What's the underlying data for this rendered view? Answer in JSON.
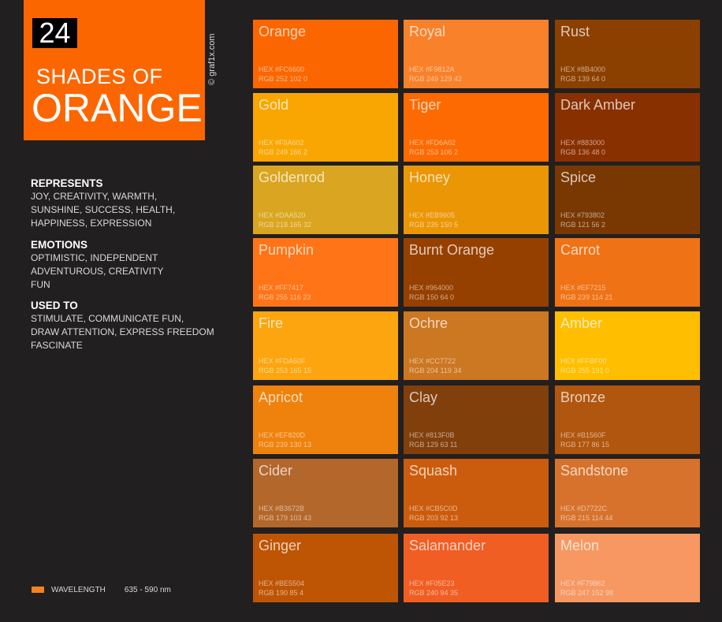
{
  "header": {
    "number": "24",
    "line1": "SHADES OF",
    "line2": "ORANGE",
    "credit": "© graf1x.com",
    "accent": "#fc6600"
  },
  "represents": {
    "heading": "REPRESENTS",
    "lines": [
      "JOY, CREATIVITY, WARMTH,",
      "SUNSHINE, SUCCESS, HEALTH,",
      "HAPPINESS, EXPRESSION"
    ]
  },
  "emotions": {
    "heading": "EMOTIONS",
    "lines": [
      "OPTIMISTIC, INDEPENDENT",
      "ADVENTUROUS, CREATIVITY",
      "FUN"
    ]
  },
  "used_to": {
    "heading": "USED TO",
    "lines": [
      "STIMULATE, COMMUNICATE FUN,",
      "DRAW ATTENTION, EXPRESS FREEDOM",
      "FASCINATE"
    ]
  },
  "wavelength": {
    "label": "WAVELENGTH",
    "range": "635 - 590 nm",
    "color": "#f58220"
  },
  "swatches": [
    {
      "name": "Orange",
      "hex": "HEX #FC6600",
      "rgb": "RGB 252 102 0",
      "color": "#fc6600"
    },
    {
      "name": "Royal",
      "hex": "HEX #F9812A",
      "rgb": "RGB 249 129 42",
      "color": "#f9812a"
    },
    {
      "name": "Rust",
      "hex": "HEX #8B4000",
      "rgb": "RGB 139 64 0",
      "color": "#8b4000"
    },
    {
      "name": "Gold",
      "hex": "HEX #F9A602",
      "rgb": "RGB 249 166 2",
      "color": "#f9a602"
    },
    {
      "name": "Tiger",
      "hex": "HEX #FD6A02",
      "rgb": "RGB 253 106 2",
      "color": "#fd6a02"
    },
    {
      "name": "Dark Amber",
      "hex": "HEX #883000",
      "rgb": "RGB 136 48 0",
      "color": "#883000"
    },
    {
      "name": "Goldenrod",
      "hex": "HEX #DAA520",
      "rgb": "RGB 218 165 32",
      "color": "#daa520"
    },
    {
      "name": "Honey",
      "hex": "HEX  #EB9605",
      "rgb": "RGB 235 150 5",
      "color": "#eb9605"
    },
    {
      "name": "Spice",
      "hex": "HEX #793802",
      "rgb": "RGB 121 56 2",
      "color": "#793802"
    },
    {
      "name": "Pumpkin",
      "hex": "HEX #FF7417",
      "rgb": "RGB 255 116 23",
      "color": "#ff7417"
    },
    {
      "name": "Burnt Orange",
      "hex": "HEX #964000",
      "rgb": "RGB 150 64 0",
      "color": "#964000"
    },
    {
      "name": "Carrot",
      "hex": "HEX #EF7215",
      "rgb": "RGB 239 114 21",
      "color": "#ef7215"
    },
    {
      "name": "Fire",
      "hex": "HEX #FDA50F",
      "rgb": "RGB 253 165 15",
      "color": "#fda50f"
    },
    {
      "name": "Ochre",
      "hex": "HEX #CC7722",
      "rgb": "RGB 204 119 34",
      "color": "#cc7722"
    },
    {
      "name": "Amber",
      "hex": "HEX #FFBF00",
      "rgb": "RGB 255 191 0",
      "color": "#ffbf00"
    },
    {
      "name": "Apricot",
      "hex": "HEX #EF820D",
      "rgb": "RGB 239 130 13",
      "color": "#ef820d"
    },
    {
      "name": "Clay",
      "hex": "HEX #813F0B",
      "rgb": "RGB 129 63 11",
      "color": "#813f0b"
    },
    {
      "name": "Bronze",
      "hex": "HEX #B1560F",
      "rgb": "RGB 177 86 15",
      "color": "#b1560f"
    },
    {
      "name": "Cider",
      "hex": "HEX #B3672B",
      "rgb": "RGB 179 103 43",
      "color": "#b3672b"
    },
    {
      "name": "Squash",
      "hex": "HEX #CB5C0D",
      "rgb": "RGB 203 92 13",
      "color": "#cb5c0d"
    },
    {
      "name": "Sandstone",
      "hex": "HEX #D7722C",
      "rgb": "RGB 215 114 44",
      "color": "#d7722c"
    },
    {
      "name": "Ginger",
      "hex": "HEX #BE5504",
      "rgb": "RGB 190 85 4",
      "color": "#be5504"
    },
    {
      "name": "Salamander",
      "hex": "HEX #F05E23",
      "rgb": "RGB 240 94 35",
      "color": "#f05e23"
    },
    {
      "name": "Melon",
      "hex": "HEX #F79862",
      "rgb": "RGB 247 152 98",
      "color": "#f79862"
    }
  ]
}
